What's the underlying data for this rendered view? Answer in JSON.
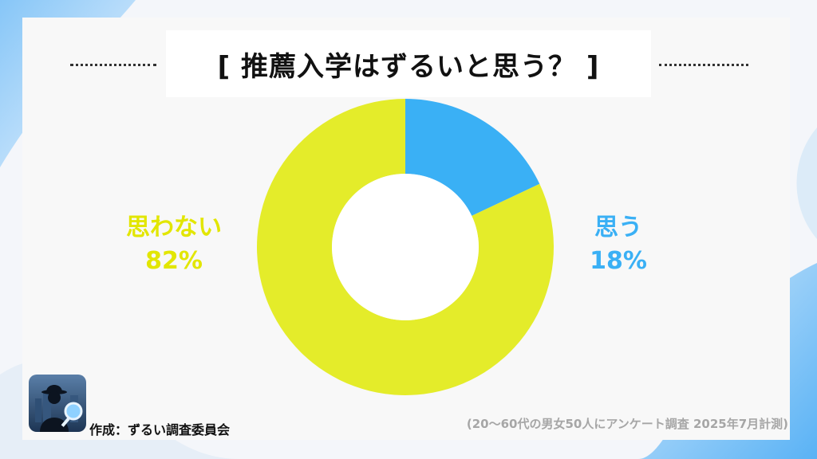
{
  "colors": {
    "yes": "#3ab0f5",
    "no": "#e4ec2a",
    "yes_text": "#3ab0f5",
    "no_text": "#e2e600",
    "title": "#111111",
    "bg_accent": "#4aaef5"
  },
  "title": "[ 推薦入学はずるいと思う？ ]",
  "chart_data": {
    "type": "pie",
    "style": "donut",
    "categories": [
      "思う",
      "思わない"
    ],
    "values": [
      18,
      82
    ],
    "percent_labels": [
      "18%",
      "82%"
    ],
    "start": "top, clockwise"
  },
  "labels": {
    "yes_name": "思う",
    "yes_pct": "18%",
    "no_name": "思わない",
    "no_pct": "82%"
  },
  "footer": {
    "credit": "作成：ずるい調査委員会",
    "note": "(20〜60代の男女50人にアンケート調査 2025年7月計測)",
    "logo_icon": "detective-magnifier-icon"
  }
}
